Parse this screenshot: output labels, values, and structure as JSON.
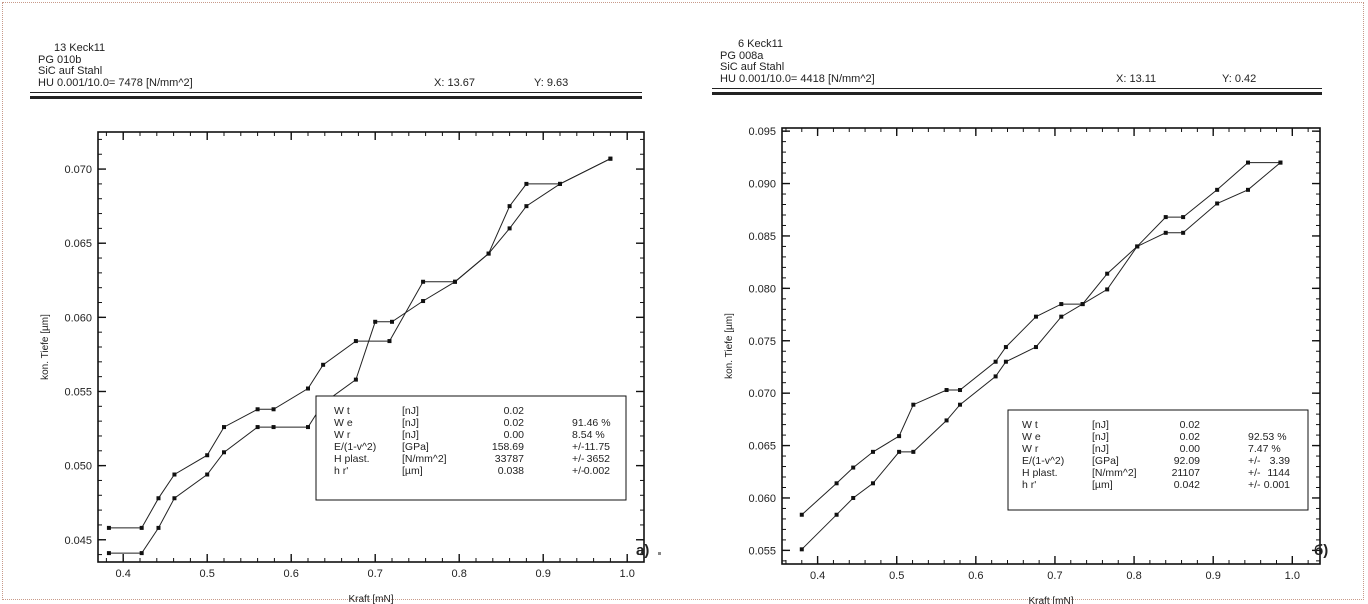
{
  "panels": [
    {
      "header": {
        "line1": "13   Keck11",
        "line2": "PG 010b",
        "line3": "SiC auf Stahl",
        "hu": "HU  0.001/10.0=  7478 [N/mm^2]",
        "x": "X:  13.67",
        "y": "Y:  9.63"
      },
      "label": "a)",
      "stats": [
        [
          "W t",
          "[nJ]",
          "0.02",
          "",
          ""
        ],
        [
          "W e",
          "[nJ]",
          "0.02",
          "91.46 %",
          ""
        ],
        [
          "W r",
          "[nJ]",
          "0.00",
          "8.54  %",
          ""
        ],
        [
          "E/(1-v^2)",
          "[GPa]",
          "158.69",
          "+/-",
          "11.75"
        ],
        [
          "H plast.",
          "[N/mm^2]",
          "33787",
          "+/-",
          "3652"
        ],
        [
          "h r'",
          "[µm]",
          "0.038",
          "+/-",
          "0.002"
        ]
      ]
    },
    {
      "header": {
        "line1": "6   Keck11",
        "line2": "PG 008a",
        "line3": "SiC auf Stahl",
        "hu": "HU  0.001/10.0=  4418 [N/mm^2]",
        "x": "X:  13.11",
        "y": "Y:  0.42"
      },
      "label": "б)",
      "stats": [
        [
          "W t",
          "[nJ]",
          "0.02",
          "",
          ""
        ],
        [
          "W e",
          "[nJ]",
          "0.02",
          "92.53 %",
          ""
        ],
        [
          "W r",
          "[nJ]",
          "0.00",
          "7.47  %",
          ""
        ],
        [
          "E/(1-v^2)",
          "[GPa]",
          "92.09",
          "+/-",
          "3.39"
        ],
        [
          "H plast.",
          "[N/mm^2]",
          "21107",
          "+/-",
          "1144"
        ],
        [
          "h r'",
          "[µm]",
          "0.042",
          "+/-",
          "0.001"
        ]
      ]
    }
  ],
  "chart_data": [
    {
      "type": "line",
      "xlabel": "Kraft  [mN]",
      "ylabel": "kon. Tiefe  [µm]",
      "xlim": [
        0.37,
        1.02
      ],
      "ylim": [
        0.0435,
        0.0725
      ],
      "xticks": [
        "0.4",
        "0.5",
        "0.6",
        "0.7",
        "0.8",
        "0.9",
        "1.0"
      ],
      "xtick_values": [
        0.4,
        0.5,
        0.6,
        0.7,
        0.8,
        0.9,
        1.0
      ],
      "yticks": [
        "0.045",
        "0.050",
        "0.055",
        "0.060",
        "0.065",
        "0.070"
      ],
      "ytick_values": [
        0.045,
        0.05,
        0.055,
        0.06,
        0.065,
        0.07
      ],
      "series": [
        {
          "x": [
            0.383,
            0.422,
            0.442,
            0.461,
            0.5,
            0.52,
            0.56,
            0.579,
            0.62,
            0.638,
            0.677,
            0.717,
            0.757,
            0.795,
            0.835,
            0.86,
            0.88,
            0.92,
            0.98
          ],
          "y": [
            0.0458,
            0.0458,
            0.0478,
            0.0494,
            0.0507,
            0.0526,
            0.0538,
            0.0538,
            0.0552,
            0.0568,
            0.0584,
            0.0584,
            0.0624,
            0.0624,
            0.0643,
            0.0675,
            0.069,
            0.069,
            0.0707
          ]
        },
        {
          "x": [
            0.383,
            0.422,
            0.442,
            0.461,
            0.5,
            0.52,
            0.56,
            0.579,
            0.62,
            0.638,
            0.677,
            0.7,
            0.72,
            0.757,
            0.795,
            0.835,
            0.86,
            0.88,
            0.92,
            0.98
          ],
          "y": [
            0.0441,
            0.0441,
            0.0458,
            0.0478,
            0.0494,
            0.0509,
            0.0526,
            0.0526,
            0.0526,
            0.0542,
            0.0558,
            0.0597,
            0.0597,
            0.0611,
            0.0624,
            0.0643,
            0.066,
            0.0675,
            0.069,
            0.0707
          ]
        }
      ]
    },
    {
      "type": "line",
      "xlabel": "Kraft  [mN]",
      "ylabel": "kon. Tiefe  [µm]",
      "xlim": [
        0.355,
        1.035
      ],
      "ylim": [
        0.0537,
        0.0953
      ],
      "xticks": [
        "0.4",
        "0.5",
        "0.6",
        "0.7",
        "0.8",
        "0.9",
        "1.0"
      ],
      "xtick_values": [
        0.4,
        0.5,
        0.6,
        0.7,
        0.8,
        0.9,
        1.0
      ],
      "yticks": [
        "0.055",
        "0.060",
        "0.065",
        "0.070",
        "0.075",
        "0.080",
        "0.085",
        "0.090",
        "0.095"
      ],
      "ytick_values": [
        0.055,
        0.06,
        0.065,
        0.07,
        0.075,
        0.08,
        0.085,
        0.09,
        0.095
      ],
      "series": [
        {
          "x": [
            0.38,
            0.424,
            0.445,
            0.47,
            0.503,
            0.521,
            0.563,
            0.58,
            0.625,
            0.638,
            0.676,
            0.708,
            0.735,
            0.766,
            0.804,
            0.84,
            0.862,
            0.905,
            0.944,
            0.985
          ],
          "y": [
            0.0584,
            0.0614,
            0.0629,
            0.0644,
            0.0659,
            0.0689,
            0.0703,
            0.0703,
            0.073,
            0.0744,
            0.0773,
            0.0785,
            0.0785,
            0.0814,
            0.084,
            0.0868,
            0.0868,
            0.0894,
            0.092,
            0.092
          ]
        },
        {
          "x": [
            0.38,
            0.424,
            0.445,
            0.47,
            0.503,
            0.521,
            0.563,
            0.58,
            0.625,
            0.638,
            0.676,
            0.708,
            0.735,
            0.766,
            0.804,
            0.84,
            0.862,
            0.905,
            0.944,
            0.985
          ],
          "y": [
            0.0551,
            0.0584,
            0.06,
            0.0614,
            0.0644,
            0.0644,
            0.0674,
            0.0689,
            0.0716,
            0.073,
            0.0744,
            0.0773,
            0.0785,
            0.0799,
            0.084,
            0.0853,
            0.0853,
            0.0881,
            0.0894,
            0.092
          ]
        }
      ]
    }
  ]
}
